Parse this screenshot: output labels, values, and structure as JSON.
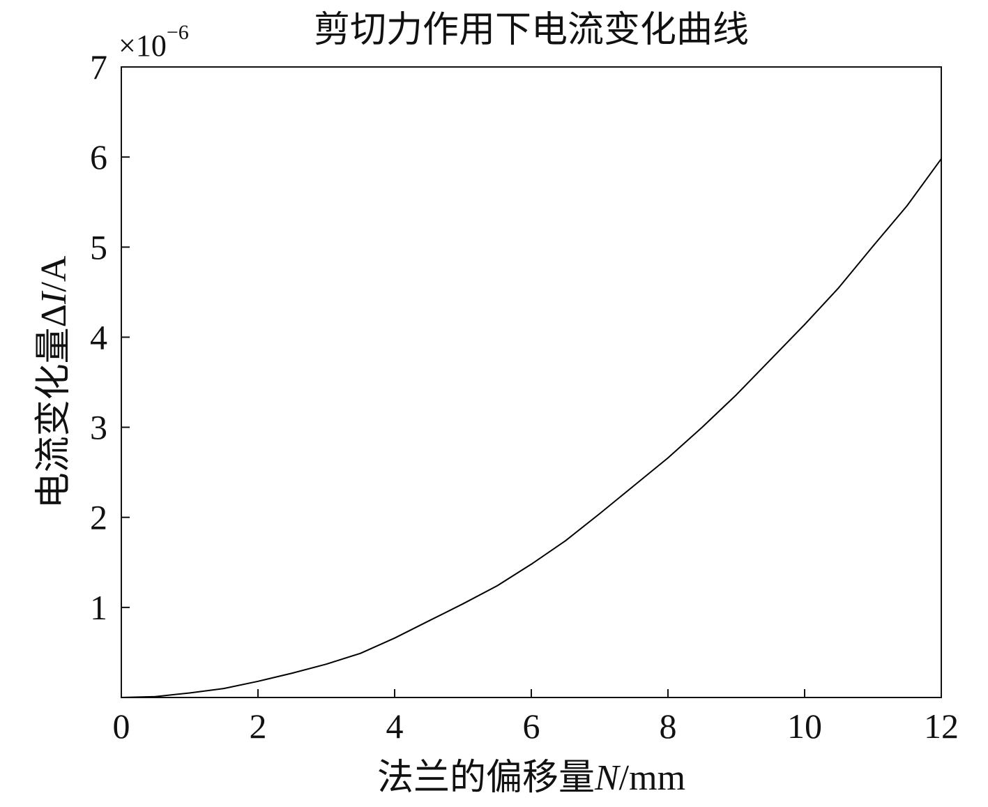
{
  "chart_data": {
    "type": "line",
    "title": "剪切力作用下电流变化曲线",
    "xlabel": {
      "prefix": "法兰的偏移量",
      "symbol": "N",
      "unit": "/mm"
    },
    "ylabel": {
      "prefix": "电流变化量Δ",
      "symbol": "I",
      "unit": "/A"
    },
    "y_multiplier": {
      "base": "×10",
      "exponent": "−6"
    },
    "xlim": [
      0,
      12
    ],
    "ylim": [
      0,
      7
    ],
    "xticks": [
      0,
      2,
      4,
      6,
      8,
      10,
      12
    ],
    "yticks": [
      1,
      2,
      3,
      4,
      5,
      6,
      7
    ],
    "x_origin_label": "0",
    "grid": false,
    "series": [
      {
        "color": "#000000",
        "x": [
          0,
          0.5,
          1,
          1.5,
          2,
          2.5,
          3,
          3.5,
          4,
          4.5,
          5,
          5.5,
          6,
          6.5,
          7,
          7.5,
          8,
          8.5,
          9,
          9.5,
          10,
          10.5,
          11,
          11.5,
          12
        ],
        "y": [
          0,
          0.01,
          0.05,
          0.1,
          0.18,
          0.27,
          0.37,
          0.49,
          0.66,
          0.85,
          1.04,
          1.24,
          1.48,
          1.74,
          2.04,
          2.35,
          2.66,
          3.0,
          3.36,
          3.75,
          4.14,
          4.55,
          5.01,
          5.46,
          5.98
        ]
      }
    ]
  }
}
